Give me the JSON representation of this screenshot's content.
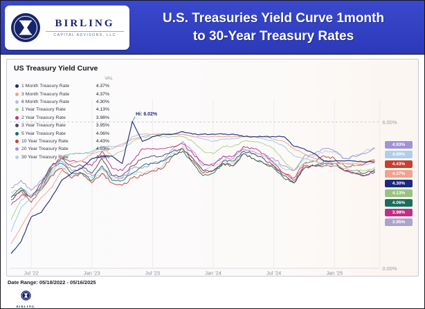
{
  "header": {
    "title_line1": "U.S. Treasuries Yield Curve 1month",
    "title_line2": "to 30-Year Treasury Rates",
    "brand": {
      "name": "BIRLING",
      "subtitle": "CAPITAL ADVISORS, LLC"
    }
  },
  "chart": {
    "title": "US Treasury Yield Curve",
    "val_header": "VAL",
    "axis_right": [
      "6.00%",
      "0.00%"
    ],
    "badges": [
      {
        "label": "4.93%",
        "color": "#a093d6"
      },
      {
        "label": "4.89%",
        "color": "#aecfe6"
      },
      {
        "label": "4.43%",
        "color": "#c8402c"
      },
      {
        "label": "4.37%",
        "color": "#f0a28c"
      },
      {
        "label": "4.30%",
        "color": "#1b2a7a"
      },
      {
        "label": "4.13%",
        "color": "#97c383"
      },
      {
        "label": "4.06%",
        "color": "#17705c"
      },
      {
        "label": "3.98%",
        "color": "#bf2f85"
      },
      {
        "label": "3.95%",
        "color": "#aaa3cc"
      }
    ]
  },
  "footer": {
    "date_range": "Date Range: 05/18/2022 - 05/16/2025"
  },
  "chart_data": {
    "type": "line",
    "title": "US Treasury Yield Curve",
    "ylim": [
      0,
      7
    ],
    "gridline_value": 6.0,
    "baseline_value": 0.0,
    "legend_position": "top-left",
    "x": [
      "2022-05",
      "2022-06",
      "2022-07",
      "2022-08",
      "2022-09",
      "2022-10",
      "2022-11",
      "2022-12",
      "2023-01",
      "2023-02",
      "2023-03",
      "2023-04",
      "2023-05",
      "2023-06",
      "2023-07",
      "2023-08",
      "2023-09",
      "2023-10",
      "2023-11",
      "2023-12",
      "2024-01",
      "2024-02",
      "2024-03",
      "2024-04",
      "2024-05",
      "2024-06",
      "2024-07",
      "2024-08",
      "2024-09",
      "2024-10",
      "2024-11",
      "2024-12",
      "2025-01",
      "2025-02",
      "2025-03",
      "2025-04",
      "2025-05"
    ],
    "x_ticks": [
      {
        "label": "Jul '22",
        "x": "2022-07"
      },
      {
        "label": "Jan '23",
        "x": "2023-01"
      },
      {
        "label": "Jul '23",
        "x": "2023-07"
      },
      {
        "label": "Jan '24",
        "x": "2024-01"
      },
      {
        "label": "Jul '24",
        "x": "2024-07"
      },
      {
        "label": "Jan '25",
        "x": "2025-01"
      }
    ],
    "annotations": [
      {
        "text": "Hi: 6.02%",
        "x": "2023-05",
        "y": 6.02
      }
    ],
    "series": [
      {
        "name": "1 Month Treasury Rate",
        "display_value": "4.37%",
        "color": "#1b2a7a",
        "values": [
          0.6,
          1.1,
          2.1,
          2.3,
          2.9,
          3.6,
          3.9,
          4.1,
          4.5,
          4.6,
          4.6,
          4.3,
          6.02,
          5.2,
          5.4,
          5.5,
          5.5,
          5.6,
          5.5,
          5.5,
          5.5,
          5.5,
          5.5,
          5.4,
          5.4,
          5.4,
          5.4,
          5.4,
          5.0,
          4.9,
          4.7,
          4.4,
          4.4,
          4.4,
          4.4,
          4.36,
          4.37
        ]
      },
      {
        "name": "3 Month Treasury Rate",
        "display_value": "4.37%",
        "color": "#f0a28c",
        "values": [
          1.0,
          1.7,
          2.4,
          2.9,
          3.3,
          4.0,
          4.3,
          4.4,
          4.7,
          4.8,
          4.9,
          5.1,
          5.3,
          5.4,
          5.5,
          5.5,
          5.5,
          5.5,
          5.4,
          5.4,
          5.4,
          5.4,
          5.4,
          5.4,
          5.4,
          5.4,
          5.3,
          5.2,
          4.9,
          4.7,
          4.5,
          4.4,
          4.3,
          4.3,
          4.3,
          4.35,
          4.37
        ]
      },
      {
        "name": "6 Month Treasury Rate",
        "display_value": "4.30%",
        "color": "#9ec6e0",
        "values": [
          1.5,
          2.5,
          2.9,
          3.3,
          3.9,
          4.5,
          4.7,
          4.7,
          4.8,
          5.0,
          5.0,
          5.0,
          5.4,
          5.5,
          5.5,
          5.5,
          5.5,
          5.5,
          5.4,
          5.3,
          5.2,
          5.3,
          5.3,
          5.4,
          5.4,
          5.3,
          5.2,
          5.0,
          4.6,
          4.5,
          4.4,
          4.3,
          4.3,
          4.3,
          4.2,
          4.25,
          4.3
        ]
      },
      {
        "name": "1 Year Treasury Rate",
        "display_value": "4.13%",
        "color": "#a6cf8e",
        "values": [
          2.0,
          2.8,
          3.0,
          3.2,
          4.0,
          4.6,
          4.7,
          4.7,
          4.7,
          5.0,
          4.6,
          4.8,
          5.2,
          5.4,
          5.4,
          5.4,
          5.4,
          5.4,
          5.2,
          4.8,
          4.7,
          5.0,
          5.0,
          5.2,
          5.2,
          5.1,
          4.9,
          4.4,
          4.0,
          4.3,
          4.4,
          4.2,
          4.2,
          4.1,
          4.0,
          4.0,
          4.13
        ]
      },
      {
        "name": "2 Year Treasury Rate",
        "display_value": "3.98%",
        "color": "#bf2f85",
        "values": [
          2.6,
          3.0,
          2.9,
          3.4,
          4.2,
          4.5,
          4.4,
          4.4,
          4.2,
          4.8,
          4.1,
          4.0,
          4.4,
          4.9,
          4.9,
          4.9,
          5.0,
          5.1,
          4.7,
          4.3,
          4.2,
          4.6,
          4.6,
          5.0,
          4.9,
          4.7,
          4.3,
          3.9,
          3.6,
          4.2,
          4.2,
          4.2,
          4.2,
          4.0,
          3.9,
          3.8,
          3.98
        ]
      },
      {
        "name": "3 Year Treasury Rate",
        "display_value": "3.95%",
        "color": "#4a4a5a",
        "values": [
          2.8,
          3.2,
          2.9,
          3.5,
          4.2,
          4.5,
          4.2,
          4.2,
          3.9,
          4.5,
          3.8,
          3.8,
          4.2,
          4.5,
          4.6,
          4.6,
          4.8,
          4.9,
          4.5,
          4.0,
          4.0,
          4.4,
          4.4,
          4.8,
          4.7,
          4.5,
          4.2,
          3.8,
          3.5,
          4.1,
          4.2,
          4.3,
          4.3,
          4.0,
          3.9,
          3.8,
          3.95
        ]
      },
      {
        "name": "5 Year Treasury Rate",
        "display_value": "4.06%",
        "color": "#17705c",
        "values": [
          2.9,
          3.3,
          2.9,
          3.3,
          4.1,
          4.3,
          3.9,
          3.9,
          3.6,
          4.2,
          3.6,
          3.6,
          3.9,
          4.2,
          4.3,
          4.4,
          4.6,
          4.8,
          4.3,
          3.8,
          3.9,
          4.3,
          4.2,
          4.7,
          4.5,
          4.3,
          4.1,
          3.7,
          3.5,
          4.1,
          4.2,
          4.4,
          4.3,
          4.0,
          4.0,
          3.9,
          4.06
        ]
      },
      {
        "name": "10 Year Treasury Rate",
        "display_value": "4.43%",
        "color": "#c8402c",
        "values": [
          2.9,
          3.2,
          2.7,
          3.2,
          3.8,
          4.1,
          3.7,
          3.9,
          3.5,
          3.9,
          3.5,
          3.4,
          3.7,
          3.8,
          4.0,
          4.1,
          4.6,
          4.9,
          4.4,
          3.9,
          4.0,
          4.3,
          4.2,
          4.7,
          4.5,
          4.3,
          4.2,
          3.9,
          3.7,
          4.3,
          4.4,
          4.6,
          4.5,
          4.2,
          4.2,
          4.3,
          4.43
        ]
      },
      {
        "name": "20 Year Treasury Rate",
        "display_value": "4.93%",
        "color": "#a093d6",
        "values": [
          3.3,
          3.6,
          3.2,
          3.6,
          4.1,
          4.4,
          4.0,
          4.1,
          3.8,
          4.1,
          3.8,
          3.7,
          4.1,
          4.1,
          4.3,
          4.4,
          4.9,
          5.2,
          4.8,
          4.2,
          4.3,
          4.6,
          4.5,
          4.9,
          4.8,
          4.6,
          4.5,
          4.2,
          4.0,
          4.6,
          4.7,
          4.9,
          4.8,
          4.5,
          4.6,
          4.7,
          4.93
        ]
      },
      {
        "name": "30 Year Treasury Rate",
        "display_value": "4.89%",
        "color": "#aecfe6",
        "values": [
          3.1,
          3.3,
          3.0,
          3.3,
          3.8,
          4.2,
          3.8,
          3.9,
          3.7,
          3.9,
          3.7,
          3.7,
          3.9,
          3.9,
          4.0,
          4.2,
          4.7,
          5.0,
          4.5,
          4.0,
          4.2,
          4.4,
          4.3,
          4.8,
          4.7,
          4.5,
          4.4,
          4.1,
          4.0,
          4.5,
          4.6,
          4.8,
          4.8,
          4.5,
          4.6,
          4.8,
          4.89
        ]
      }
    ]
  }
}
